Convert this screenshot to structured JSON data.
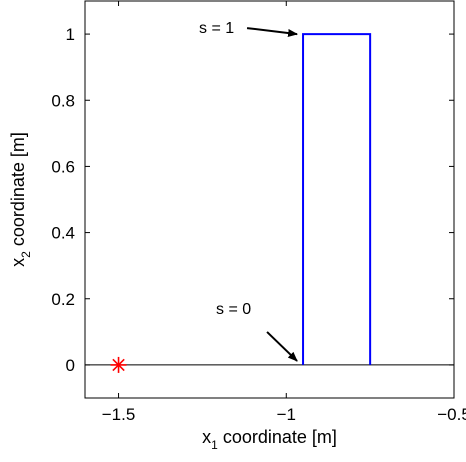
{
  "chart_data": {
    "type": "line",
    "title": "",
    "xlabel": {
      "prefix": "x",
      "subscript": "1",
      "suffix": " coordinate [m]"
    },
    "ylabel": {
      "prefix": "x",
      "subscript": "2",
      "suffix": " coordinate [m]"
    },
    "xlim": [
      -1.6,
      -0.5
    ],
    "ylim": [
      -0.1,
      1.1
    ],
    "grid": false,
    "xticks": [
      {
        "value": -1.5,
        "label": "−1.5"
      },
      {
        "value": -1.0,
        "label": "−1"
      },
      {
        "value": -0.5,
        "label": "−0.5"
      }
    ],
    "yticks": [
      {
        "value": 0,
        "label": "0"
      },
      {
        "value": 0.2,
        "label": "0.2"
      },
      {
        "value": 0.4,
        "label": "0.4"
      },
      {
        "value": 0.6,
        "label": "0.6"
      },
      {
        "value": 0.8,
        "label": "0.8"
      },
      {
        "value": 1.0,
        "label": "1"
      }
    ],
    "series": [
      {
        "color": "#0000ff",
        "x": [
          -0.95,
          -0.95,
          -0.75,
          -0.75
        ],
        "y": [
          0,
          1,
          1,
          0
        ]
      }
    ],
    "baseline": {
      "y": 0,
      "color": "#000000"
    },
    "marker": {
      "x": -1.5,
      "y": 0,
      "symbol": "*",
      "color": "#ff0000"
    },
    "annotations": [
      {
        "text": "s = 1",
        "target": {
          "x": -0.95,
          "y": 1.0
        },
        "placement": "left"
      },
      {
        "text": "s = 0",
        "target": {
          "x": -0.95,
          "y": 0.0
        },
        "placement": "above-left"
      }
    ]
  }
}
